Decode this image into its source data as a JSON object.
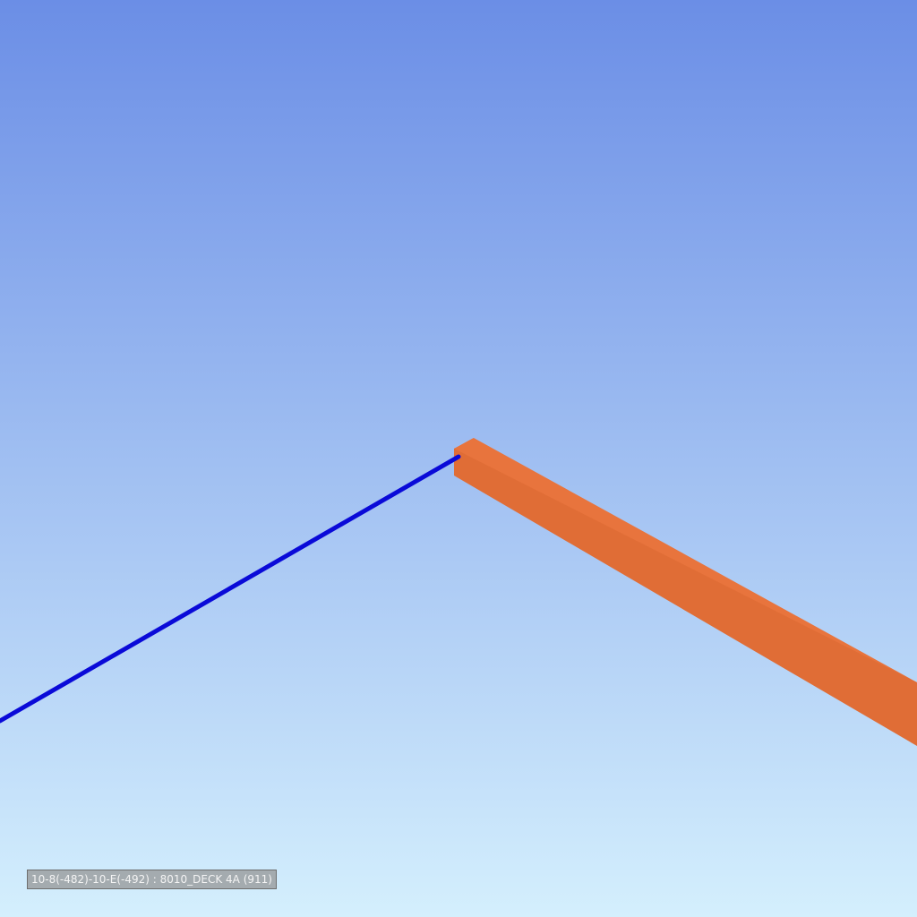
{
  "viewport": {
    "background_top": "#6b8ee6",
    "background_bottom": "#d4effd"
  },
  "objects": {
    "selected_line_color": "#0a0ad8",
    "beam_front_color": "#e06d36",
    "beam_top_color": "#e8743d",
    "beam_end_color": "#d86632"
  },
  "tooltip": {
    "text": "10-8(-482)-10-E(-492) : 8010_DECK 4A (911)"
  }
}
